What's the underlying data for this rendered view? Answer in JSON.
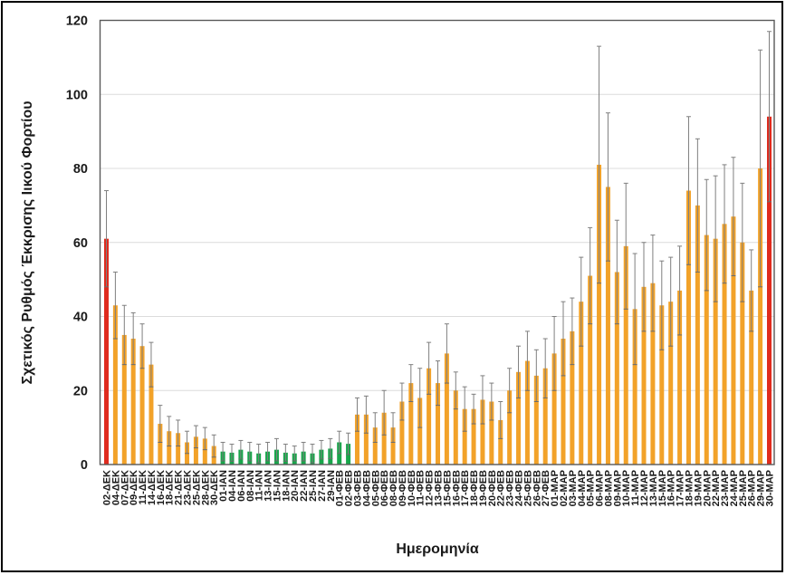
{
  "figure": {
    "palette": {
      "orange": "#F2A229",
      "red": "#DF2B1E",
      "green": "#18A64B",
      "error_bar": "#7F7F7F",
      "gridline": "#DCDCDC",
      "axis_border": "#595959",
      "text": "#1a1a1a"
    }
  },
  "chart_data": {
    "type": "bar",
    "title": "",
    "xlabel": "Ημερομηνία",
    "ylabel": "Σχετικός Ρυθμός Έκκρισης Ιικού Φορτίου",
    "ylim": [
      0,
      120
    ],
    "yticks": [
      0,
      20,
      40,
      60,
      80,
      100,
      120
    ],
    "grid": true,
    "error_bars": true,
    "legend": "none",
    "categories": [
      "02-ΔΕΚ",
      "04-ΔΕΚ",
      "07-ΔΕΚ",
      "09-ΔΕΚ",
      "11-ΔΕΚ",
      "14-ΔΕΚ",
      "16-ΔΕΚ",
      "18-ΔΕΚ",
      "21-ΔΕΚ",
      "23-ΔΕΚ",
      "25-ΔΕΚ",
      "28-ΔΕΚ",
      "30-ΔΕΚ",
      "01-ΙΑΝ",
      "04-ΙΑΝ",
      "06-ΙΑΝ",
      "08-ΙΑΝ",
      "11-ΙΑΝ",
      "13-ΙΑΝ",
      "15-ΙΑΝ",
      "18-ΙΑΝ",
      "20-ΙΑΝ",
      "22-ΙΑΝ",
      "25-ΙΑΝ",
      "27-ΙΑΝ",
      "29-ΙΑΝ",
      "01-ΦΕΒ",
      "02-ΦΕΒ",
      "03-ΦΕΒ",
      "04-ΦΕΒ",
      "05-ΦΕΒ",
      "06-ΦΕΒ",
      "08-ΦΕΒ",
      "09-ΦΕΒ",
      "10-ΦΕΒ",
      "11-ΦΕΒ",
      "12-ΦΕΒ",
      "13-ΦΕΒ",
      "15-ΦΕΒ",
      "16-ΦΕΒ",
      "17-ΦΕΒ",
      "18-ΦΕΒ",
      "19-ΦΕΒ",
      "20-ΦΕΒ",
      "22-ΦΕΒ",
      "23-ΦΕΒ",
      "24-ΦΕΒ",
      "25-ΦΕΒ",
      "26-ΦΕΒ",
      "27-ΦΕΒ",
      "01-ΜΑΡ",
      "02-ΜΑΡ",
      "03-ΜΑΡ",
      "04-ΜΑΡ",
      "05-ΜΑΡ",
      "06-ΜΑΡ",
      "08-ΜΑΡ",
      "09-ΜΑΡ",
      "10-ΜΑΡ",
      "11-ΜΑΡ",
      "12-ΜΑΡ",
      "13-ΜΑΡ",
      "15-ΜΑΡ",
      "16-ΜΑΡ",
      "17-ΜΑΡ",
      "18-ΜΑΡ",
      "19-ΜΑΡ",
      "20-ΜΑΡ",
      "22-ΜΑΡ",
      "23-ΜΑΡ",
      "24-ΜΑΡ",
      "25-ΜΑΡ",
      "26-ΜΑΡ",
      "29-ΜΑΡ",
      "30-ΜΑΡ"
    ],
    "values": [
      61,
      43,
      35,
      34,
      32,
      27,
      11,
      9,
      8.5,
      6,
      7.5,
      7,
      5,
      3.5,
      3.2,
      4,
      3.5,
      3,
      3.5,
      4,
      3.2,
      3,
      3.5,
      3,
      4,
      4.3,
      6,
      5.6,
      13.5,
      13.5,
      10,
      14,
      10,
      17,
      22,
      18,
      26,
      22,
      30,
      20,
      15,
      15,
      17.5,
      17,
      12,
      20,
      25,
      28,
      24,
      26,
      30,
      34,
      36,
      44,
      51,
      81,
      75,
      52,
      59,
      42,
      48,
      49,
      43,
      44,
      47,
      74,
      70,
      62,
      61,
      65,
      67,
      60,
      47,
      80,
      94
    ],
    "error_high": [
      74,
      52,
      43,
      41,
      38,
      33,
      16,
      13,
      12,
      9,
      10.5,
      10,
      8,
      6,
      5.5,
      6.5,
      6,
      5.5,
      6,
      7,
      5.5,
      5,
      6,
      5.5,
      6.5,
      7,
      9,
      8.5,
      18,
      18.5,
      14,
      20,
      14,
      22,
      27,
      26,
      33,
      28,
      38,
      25,
      21,
      19,
      24,
      22,
      17,
      26,
      32,
      36,
      31,
      34,
      40,
      44,
      45,
      56,
      64,
      113,
      95,
      66,
      76,
      57,
      60,
      62,
      55,
      56,
      59,
      94,
      88,
      77,
      78,
      81,
      83,
      76,
      58,
      112,
      117
    ],
    "bar_colors": [
      "red",
      "orange",
      "orange",
      "orange",
      "orange",
      "orange",
      "orange",
      "orange",
      "orange",
      "orange",
      "orange",
      "orange",
      "orange",
      "green",
      "green",
      "green",
      "green",
      "green",
      "green",
      "green",
      "green",
      "green",
      "green",
      "green",
      "green",
      "green",
      "green",
      "green",
      "orange",
      "orange",
      "orange",
      "orange",
      "orange",
      "orange",
      "orange",
      "orange",
      "orange",
      "orange",
      "orange",
      "orange",
      "orange",
      "orange",
      "orange",
      "orange",
      "orange",
      "orange",
      "orange",
      "orange",
      "orange",
      "orange",
      "orange",
      "orange",
      "orange",
      "orange",
      "orange",
      "orange",
      "orange",
      "orange",
      "orange",
      "orange",
      "orange",
      "orange",
      "orange",
      "orange",
      "orange",
      "orange",
      "orange",
      "orange",
      "orange",
      "orange",
      "orange",
      "orange",
      "orange",
      "orange",
      "red"
    ]
  }
}
